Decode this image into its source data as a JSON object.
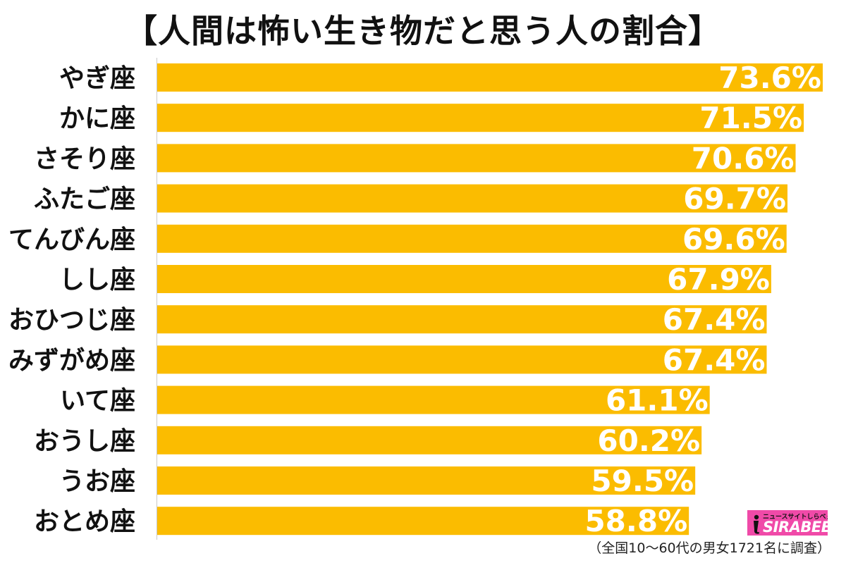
{
  "chart_data": {
    "type": "bar",
    "orientation": "horizontal",
    "title": "【人間は怖い生き物だと思う人の割合】",
    "categories": [
      "やぎ座",
      "かに座",
      "さそり座",
      "ふたご座",
      "てんびん座",
      "しし座",
      "おひつじ座",
      "みずがめ座",
      "いて座",
      "おうし座",
      "うお座",
      "おとめ座"
    ],
    "values": [
      73.6,
      71.5,
      70.6,
      69.7,
      69.6,
      67.9,
      67.4,
      67.4,
      61.1,
      60.2,
      59.5,
      58.8
    ],
    "value_labels": [
      "73.6%",
      "71.5%",
      "70.6%",
      "69.7%",
      "69.6%",
      "67.9%",
      "67.4%",
      "67.4%",
      "61.1%",
      "60.2%",
      "59.5%",
      "58.8%"
    ],
    "xlim": [
      0,
      75
    ],
    "grid": false,
    "legend": "none",
    "bar_color": "#fbbc00",
    "value_label_color": "#ffffff"
  },
  "footnote": "（全国10〜60代の男女1721名に調査）",
  "logo": {
    "tagline": "ニュースサイトしらべぇ",
    "wordmark": "SIRABEE",
    "background_color": "#f04aa8",
    "icon": "sirabee-logo-icon"
  }
}
